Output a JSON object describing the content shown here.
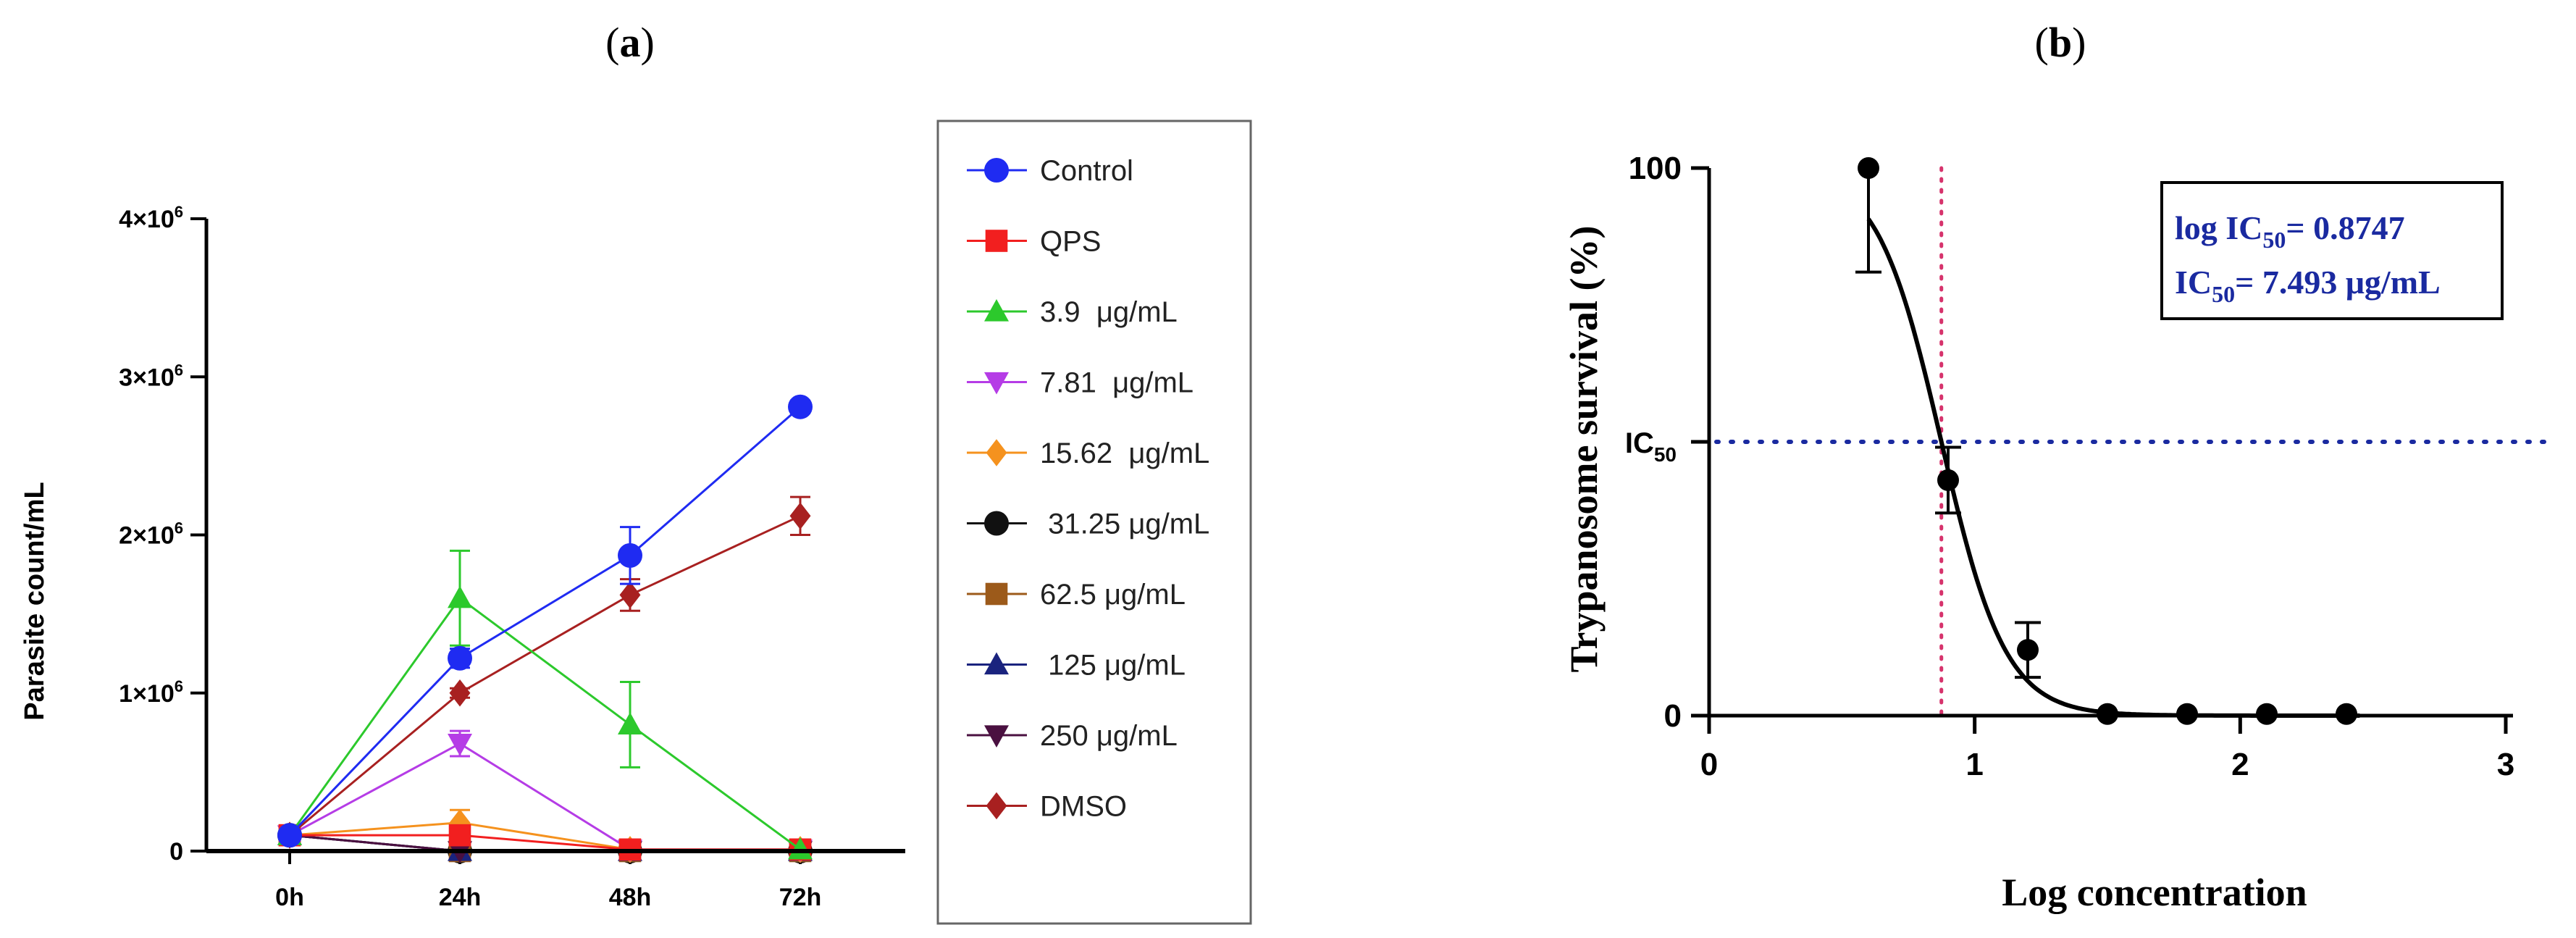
{
  "chart_data": [
    {
      "panel_label": "(a)",
      "panel_letter": "a",
      "type": "line",
      "title": "",
      "xlabel": "",
      "ylabel": "Parasite count/mL",
      "categories": [
        "0h",
        "24h",
        "48h",
        "72h"
      ],
      "ylim": [
        0,
        4000000
      ],
      "yticks": [
        {
          "value": 0,
          "label": "0"
        },
        {
          "value": 1000000,
          "label": "1×10",
          "exp": "6"
        },
        {
          "value": 2000000,
          "label": "2×10",
          "exp": "6"
        },
        {
          "value": 3000000,
          "label": "3×10",
          "exp": "6"
        },
        {
          "value": 4000000,
          "label": "4×10",
          "exp": "6"
        }
      ],
      "grid": false,
      "legend_position": "right",
      "series": [
        {
          "name": "Control",
          "color": "#1f2bf2",
          "marker": "circle",
          "values": [
            100000,
            1220000,
            1870000,
            2810000
          ],
          "errors": [
            30000,
            60000,
            180000,
            40000
          ]
        },
        {
          "name": "QPS",
          "color": "#f21f1f",
          "marker": "square",
          "values": [
            100000,
            100000,
            10000,
            10000
          ],
          "errors": [
            20000,
            20000,
            0,
            0
          ]
        },
        {
          "name": "3.9  μg/mL",
          "color": "#2cc92c",
          "marker": "triangle-up",
          "values": [
            100000,
            1600000,
            800000,
            10000
          ],
          "errors": [
            30000,
            300000,
            270000,
            0
          ]
        },
        {
          "name": "7.81  μg/mL",
          "color": "#b53ce6",
          "marker": "triangle-down",
          "values": [
            100000,
            680000,
            10000,
            10000
          ],
          "errors": [
            30000,
            80000,
            0,
            0
          ]
        },
        {
          "name": "15.62  μg/mL",
          "color": "#f5921e",
          "marker": "diamond",
          "values": [
            100000,
            180000,
            10000,
            10000
          ],
          "errors": [
            30000,
            80000,
            0,
            0
          ]
        },
        {
          "name": " 31.25 μg/mL",
          "color": "#111111",
          "marker": "circle",
          "values": [
            100000,
            0,
            0,
            0
          ],
          "errors": [
            0,
            0,
            0,
            0
          ]
        },
        {
          "name": "62.5 μg/mL",
          "color": "#9c5a1a",
          "marker": "square",
          "values": [
            100000,
            0,
            0,
            0
          ],
          "errors": [
            0,
            0,
            0,
            0
          ]
        },
        {
          "name": " 125 μg/mL",
          "color": "#1a237e",
          "marker": "triangle-up",
          "values": [
            100000,
            0,
            0,
            0
          ],
          "errors": [
            0,
            0,
            0,
            0
          ]
        },
        {
          "name": "250 μg/mL",
          "color": "#4a1040",
          "marker": "triangle-down",
          "values": [
            100000,
            0,
            0,
            0
          ],
          "errors": [
            0,
            0,
            0,
            0
          ]
        },
        {
          "name": "DMSO",
          "color": "#a82020",
          "marker": "diamond",
          "values": [
            100000,
            1000000,
            1620000,
            2120000
          ],
          "errors": [
            30000,
            30000,
            100000,
            120000
          ]
        }
      ]
    },
    {
      "panel_label": "(b)",
      "panel_letter": "b",
      "type": "scatter",
      "title": "",
      "xlabel": "Log concentration",
      "ylabel": "Trypanosome survival (%)",
      "xlim": [
        0,
        3
      ],
      "ylim": [
        0,
        100
      ],
      "xticks": [
        0,
        1,
        2,
        3
      ],
      "yticks": [
        0,
        50,
        100
      ],
      "ytick_labels": [
        "0",
        "",
        "100"
      ],
      "ic50_axis_label": "IC",
      "ic50_axis_sub": "50",
      "points": [
        {
          "x": 0.6,
          "y": 100,
          "err": 0
        },
        {
          "x": 0.9,
          "y": 43,
          "err": 6
        },
        {
          "x": 1.2,
          "y": 12,
          "err": 5
        },
        {
          "x": 1.5,
          "y": 0.3,
          "err": 0
        },
        {
          "x": 1.8,
          "y": 0.3,
          "err": 0
        },
        {
          "x": 2.1,
          "y": 0.3,
          "err": 0
        },
        {
          "x": 2.4,
          "y": 0.3,
          "err": 0
        }
      ],
      "first_point_lower_error_to": 81,
      "fit": {
        "type": "sigmoid",
        "top": 100,
        "bottom": 0,
        "log_ic50": 0.8747,
        "hill_slope": -3.6
      },
      "ic50_hline_y": 50,
      "ic50_vline_x": 0.8747,
      "hline_color": "#1a2aa0",
      "vline_color": "#d6336c",
      "annotation": {
        "line1_prefix": "log IC",
        "line1_sub": "50",
        "line1_suffix": "= 0.8747",
        "line2_prefix": "IC",
        "line2_sub": "50",
        "line2_suffix": "= 7.493 μg/mL",
        "color": "#1a2aa0",
        "position": "top-right"
      }
    }
  ]
}
